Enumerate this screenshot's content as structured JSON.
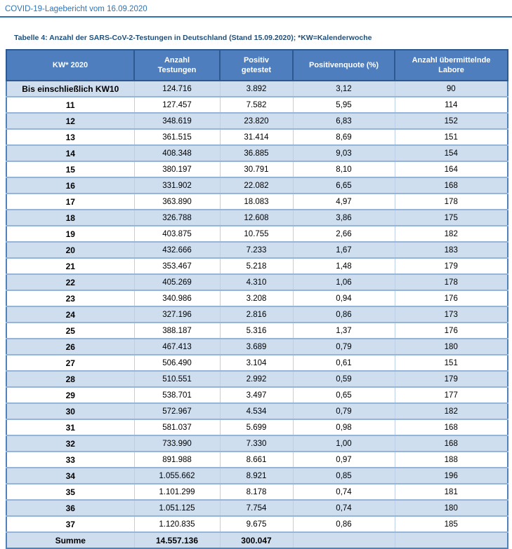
{
  "page": {
    "header": "COVID-19-Lagebericht vom 16.09.2020",
    "table_title": "Tabelle 4: Anzahl der SARS-CoV-2-Testungen in Deutschland (Stand 15.09.2020); *KW=Kalenderwoche"
  },
  "colors": {
    "header_text": "#2E74B5",
    "header_rule": "#2E74B5",
    "title_text": "#1F4E79",
    "table_header_bg": "#4E7EBD",
    "table_header_border": "#2E5890",
    "shaded_row_bg": "#CEDEEF",
    "row_divider": "#94B4DA",
    "outer_border": "#4F81BD"
  },
  "table": {
    "columns": [
      "KW* 2020",
      "Anzahl Testungen",
      "Positiv getestet",
      "Positivenquote (%)",
      "Anzahl übermittelnde Labore"
    ],
    "rows": [
      [
        "Bis einschließlich KW10",
        "124.716",
        "3.892",
        "3,12",
        "90"
      ],
      [
        "11",
        "127.457",
        "7.582",
        "5,95",
        "114"
      ],
      [
        "12",
        "348.619",
        "23.820",
        "6,83",
        "152"
      ],
      [
        "13",
        "361.515",
        "31.414",
        "8,69",
        "151"
      ],
      [
        "14",
        "408.348",
        "36.885",
        "9,03",
        "154"
      ],
      [
        "15",
        "380.197",
        "30.791",
        "8,10",
        "164"
      ],
      [
        "16",
        "331.902",
        "22.082",
        "6,65",
        "168"
      ],
      [
        "17",
        "363.890",
        "18.083",
        "4,97",
        "178"
      ],
      [
        "18",
        "326.788",
        "12.608",
        "3,86",
        "175"
      ],
      [
        "19",
        "403.875",
        "10.755",
        "2,66",
        "182"
      ],
      [
        "20",
        "432.666",
        "7.233",
        "1,67",
        "183"
      ],
      [
        "21",
        "353.467",
        "5.218",
        "1,48",
        "179"
      ],
      [
        "22",
        "405.269",
        "4.310",
        "1,06",
        "178"
      ],
      [
        "23",
        "340.986",
        "3.208",
        "0,94",
        "176"
      ],
      [
        "24",
        "327.196",
        "2.816",
        "0,86",
        "173"
      ],
      [
        "25",
        "388.187",
        "5.316",
        "1,37",
        "176"
      ],
      [
        "26",
        "467.413",
        "3.689",
        "0,79",
        "180"
      ],
      [
        "27",
        "506.490",
        "3.104",
        "0,61",
        "151"
      ],
      [
        "28",
        "510.551",
        "2.992",
        "0,59",
        "179"
      ],
      [
        "29",
        "538.701",
        "3.497",
        "0,65",
        "177"
      ],
      [
        "30",
        "572.967",
        "4.534",
        "0,79",
        "182"
      ],
      [
        "31",
        "581.037",
        "5.699",
        "0,98",
        "168"
      ],
      [
        "32",
        "733.990",
        "7.330",
        "1,00",
        "168"
      ],
      [
        "33",
        "891.988",
        "8.661",
        "0,97",
        "188"
      ],
      [
        "34",
        "1.055.662",
        "8.921",
        "0,85",
        "196"
      ],
      [
        "35",
        "1.101.299",
        "8.178",
        "0,74",
        "181"
      ],
      [
        "36",
        "1.051.125",
        "7.754",
        "0,74",
        "180"
      ],
      [
        "37",
        "1.120.835",
        "9.675",
        "0,86",
        "185"
      ]
    ],
    "summary": [
      "Summe",
      "14.557.136",
      "300.047",
      "",
      ""
    ]
  }
}
